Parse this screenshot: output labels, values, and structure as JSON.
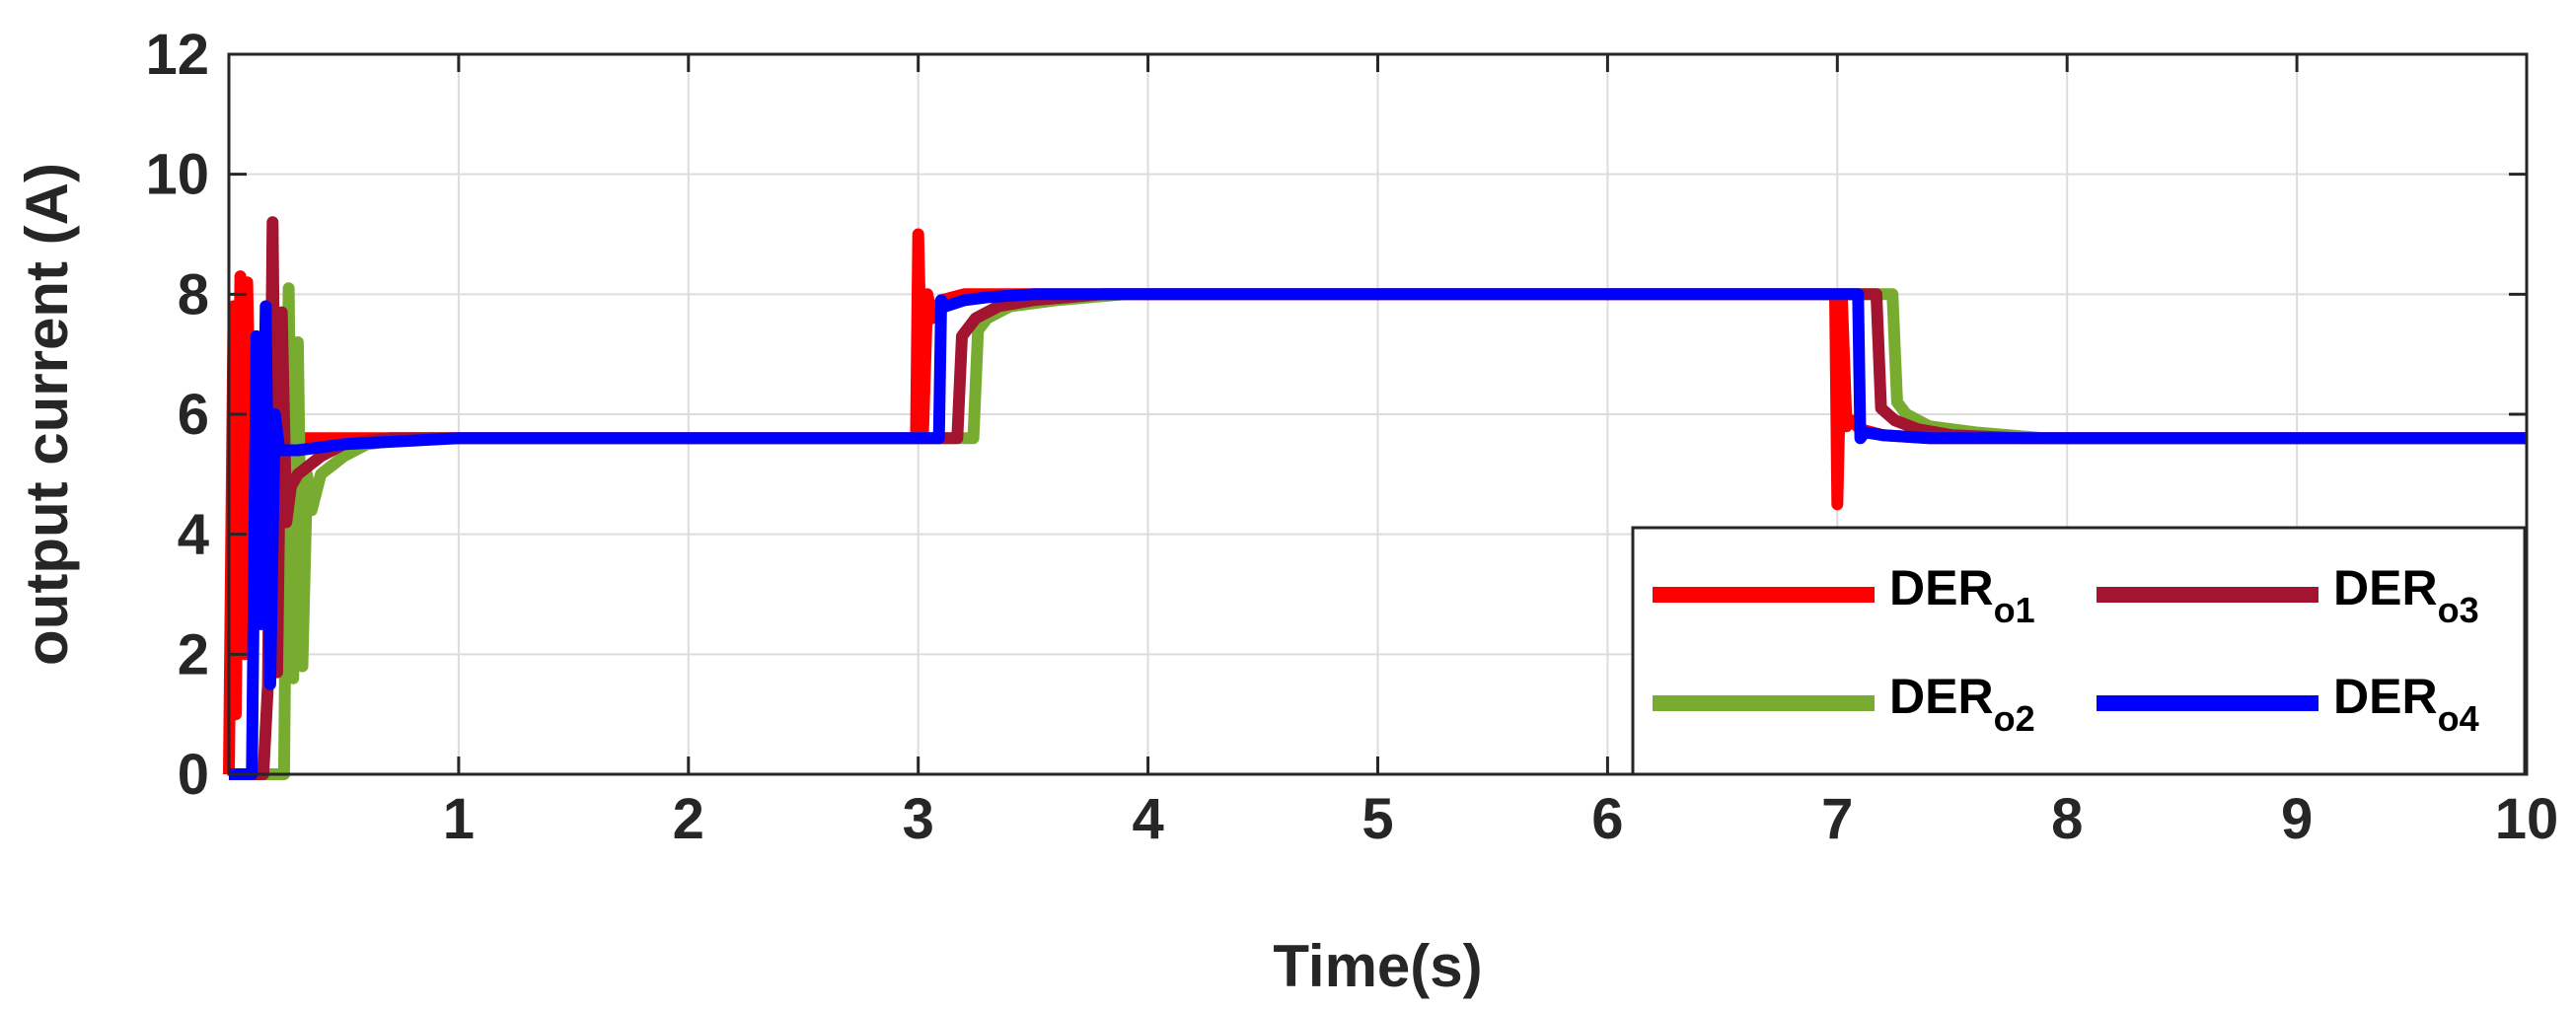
{
  "chart_data": {
    "type": "line",
    "xlabel": "Time(s)",
    "ylabel": "output current (A)",
    "xlim": [
      0,
      10
    ],
    "ylim": [
      0,
      12
    ],
    "xticks": [
      1,
      2,
      3,
      4,
      5,
      6,
      7,
      8,
      9,
      10
    ],
    "yticks": [
      0,
      2,
      4,
      6,
      8,
      10,
      12
    ],
    "grid": true,
    "legend_position": "bottom-right",
    "legend_columns": 2,
    "series": [
      {
        "name": "DER",
        "name_sub": "o1",
        "color": "#ff0000",
        "x": [
          0.0,
          0.02,
          0.03,
          0.05,
          0.07,
          0.08,
          0.1,
          0.12,
          0.14,
          0.16,
          0.2,
          0.3,
          0.4,
          0.6,
          1.0,
          2.0,
          2.99,
          3.0,
          3.02,
          3.04,
          3.06,
          3.1,
          3.2,
          3.4,
          3.7,
          4.0,
          5.0,
          6.0,
          6.99,
          7.0,
          7.02,
          7.04,
          7.06,
          7.1,
          7.2,
          7.4,
          7.7,
          8.0,
          9.0,
          10.0
        ],
        "y": [
          0.0,
          7.8,
          1.0,
          8.3,
          2.0,
          8.2,
          4.0,
          6.5,
          4.8,
          5.4,
          5.5,
          5.6,
          5.6,
          5.6,
          5.6,
          5.6,
          5.6,
          9.0,
          5.6,
          8.0,
          7.6,
          7.9,
          8.0,
          8.0,
          8.0,
          8.0,
          8.0,
          8.0,
          8.0,
          4.5,
          7.9,
          5.8,
          5.9,
          5.75,
          5.65,
          5.6,
          5.6,
          5.6,
          5.6,
          5.6
        ]
      },
      {
        "name": "DER",
        "name_sub": "o2",
        "color": "#77ac30",
        "x": [
          0.0,
          0.2,
          0.24,
          0.26,
          0.28,
          0.3,
          0.32,
          0.34,
          0.36,
          0.4,
          0.5,
          0.6,
          0.8,
          1.0,
          2.0,
          3.0,
          3.24,
          3.26,
          3.3,
          3.4,
          3.6,
          3.9,
          4.0,
          5.0,
          6.0,
          7.0,
          7.24,
          7.26,
          7.3,
          7.4,
          7.6,
          7.9,
          8.0,
          9.0,
          10.0
        ],
        "y": [
          0.0,
          0.0,
          0.0,
          8.1,
          1.6,
          7.2,
          1.8,
          5.0,
          4.4,
          5.0,
          5.3,
          5.5,
          5.6,
          5.6,
          5.6,
          5.6,
          5.6,
          7.4,
          7.6,
          7.8,
          7.9,
          8.0,
          8.0,
          8.0,
          8.0,
          8.0,
          8.0,
          6.2,
          6.0,
          5.8,
          5.7,
          5.6,
          5.6,
          5.6,
          5.6
        ]
      },
      {
        "name": "DER",
        "name_sub": "o3",
        "color": "#a2142f",
        "x": [
          0.0,
          0.15,
          0.17,
          0.19,
          0.21,
          0.23,
          0.25,
          0.27,
          0.3,
          0.4,
          0.5,
          0.7,
          1.0,
          2.0,
          3.0,
          3.17,
          3.19,
          3.25,
          3.35,
          3.5,
          3.8,
          4.0,
          5.0,
          6.0,
          7.0,
          7.17,
          7.19,
          7.25,
          7.35,
          7.5,
          7.8,
          8.0,
          9.0,
          10.0
        ],
        "y": [
          0.0,
          0.0,
          1.5,
          9.2,
          1.7,
          7.7,
          4.2,
          4.8,
          5.0,
          5.3,
          5.5,
          5.6,
          5.6,
          5.6,
          5.6,
          5.6,
          7.3,
          7.6,
          7.8,
          7.9,
          8.0,
          8.0,
          8.0,
          8.0,
          8.0,
          8.0,
          6.1,
          5.9,
          5.75,
          5.65,
          5.6,
          5.6,
          5.6,
          5.6
        ]
      },
      {
        "name": "DER",
        "name_sub": "o4",
        "color": "#0000ff",
        "x": [
          0.0,
          0.08,
          0.1,
          0.12,
          0.14,
          0.16,
          0.18,
          0.2,
          0.22,
          0.25,
          0.3,
          0.5,
          1.0,
          2.0,
          3.0,
          3.09,
          3.1,
          3.12,
          3.2,
          3.3,
          3.5,
          3.8,
          4.0,
          5.0,
          6.0,
          7.0,
          7.09,
          7.1,
          7.12,
          7.2,
          7.4,
          7.7,
          8.0,
          9.0,
          10.0
        ],
        "y": [
          0.0,
          0.0,
          0.0,
          7.3,
          2.5,
          7.8,
          1.5,
          6.0,
          5.4,
          5.4,
          5.4,
          5.5,
          5.6,
          5.6,
          5.6,
          5.6,
          7.9,
          7.8,
          7.9,
          7.95,
          8.0,
          8.0,
          8.0,
          8.0,
          8.0,
          8.0,
          8.0,
          5.6,
          5.7,
          5.65,
          5.6,
          5.6,
          5.6,
          5.6,
          5.6
        ]
      }
    ]
  }
}
